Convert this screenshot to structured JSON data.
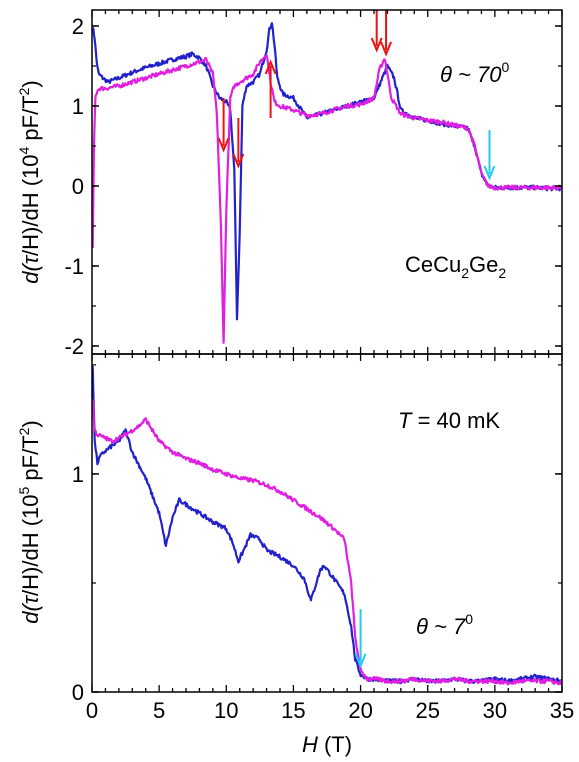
{
  "chart_data": [
    {
      "type": "line",
      "panel": "top",
      "ylabel": {
        "pre": "d(",
        "tau": "τ",
        "mid": "/H)/dH (10",
        "exp": "4",
        "post": " pF/T",
        "post_exp": "2",
        "end": ")"
      },
      "xlim": [
        0,
        35
      ],
      "ylim": [
        -2.1,
        2.2
      ],
      "yticks": [
        "-2",
        "-1",
        "0",
        "1",
        "2"
      ],
      "ytick_values": [
        -2,
        -1,
        0,
        1,
        2
      ],
      "annotations": {
        "theta": "θ ~ 70",
        "theta_exp": "0",
        "compound_a": "CeCu",
        "compound_sub1": "2",
        "compound_b": "Ge",
        "compound_sub2": "2"
      },
      "series": [
        {
          "color": "#2222cc",
          "x": [
            0.05,
            0.2,
            0.35,
            0.5,
            0.8,
            1.2,
            2,
            3,
            4,
            5,
            6,
            7,
            7.5,
            8,
            8.5,
            9,
            9.5,
            10,
            10.3,
            10.6,
            10.8,
            11.0,
            11.2,
            11.5,
            12,
            12.5,
            13,
            13.2,
            13.4,
            13.6,
            13.8,
            14.2,
            15,
            16,
            17,
            18,
            19,
            20,
            21,
            21.5,
            22,
            22.5,
            23,
            24,
            25,
            26,
            27,
            28,
            28.5,
            29,
            29.5,
            30,
            31,
            32,
            33,
            34,
            35
          ],
          "y": [
            2.0,
            1.85,
            1.55,
            1.4,
            1.35,
            1.3,
            1.35,
            1.42,
            1.48,
            1.53,
            1.58,
            1.62,
            1.65,
            1.6,
            1.5,
            1.25,
            1.1,
            1.05,
            0.95,
            0.2,
            -1.65,
            -0.6,
            1.0,
            1.25,
            1.3,
            1.4,
            1.7,
            1.95,
            2.05,
            1.75,
            1.35,
            1.15,
            1.1,
            0.85,
            0.9,
            0.95,
            1.0,
            1.05,
            1.1,
            1.3,
            1.5,
            1.35,
            0.95,
            0.85,
            0.82,
            0.78,
            0.75,
            0.72,
            0.5,
            0.15,
            0.0,
            -0.02,
            -0.02,
            -0.02,
            -0.02,
            -0.03,
            -0.03
          ]
        },
        {
          "color": "#e020e0",
          "x": [
            0.05,
            0.15,
            0.25,
            0.4,
            0.6,
            1.0,
            2,
            3,
            4,
            5,
            6,
            7,
            8,
            8.5,
            9,
            9.3,
            9.6,
            9.8,
            10.0,
            10.3,
            10.6,
            11,
            11.5,
            12,
            12.5,
            13,
            13.3,
            13.6,
            14,
            15,
            16,
            17,
            18,
            19,
            20,
            21,
            21.4,
            21.8,
            22.3,
            23,
            24,
            25,
            26,
            27,
            28,
            28.5,
            29,
            29.5,
            30,
            31,
            32,
            33,
            34,
            35
          ],
          "y": [
            -0.8,
            0.5,
            1.1,
            1.2,
            1.22,
            1.22,
            1.25,
            1.3,
            1.35,
            1.4,
            1.45,
            1.5,
            1.55,
            1.58,
            1.4,
            0.9,
            -0.5,
            -1.95,
            -0.3,
            1.1,
            1.25,
            1.3,
            1.35,
            1.4,
            1.55,
            1.65,
            1.3,
            1.05,
            1.0,
            0.95,
            0.88,
            0.9,
            0.95,
            1.0,
            1.02,
            1.1,
            1.45,
            1.6,
            1.1,
            0.9,
            0.85,
            0.82,
            0.8,
            0.76,
            0.72,
            0.5,
            0.15,
            0.0,
            -0.02,
            -0.02,
            -0.02,
            -0.02,
            -0.02,
            -0.02
          ]
        }
      ],
      "arrows": [
        {
          "color": "#ee1111",
          "x": 9.8,
          "y_tail": 1.1,
          "y_head": 0.45
        },
        {
          "color": "#ee1111",
          "x": 10.9,
          "y_tail": 0.85,
          "y_head": 0.25
        },
        {
          "color": "#ee1111",
          "x": 13.3,
          "y_tail": 0.85,
          "y_head": 1.55
        },
        {
          "color": "#ee1111",
          "x": 21.2,
          "y_tail": 2.2,
          "y_head": 1.7
        },
        {
          "color": "#ee1111",
          "x": 21.9,
          "y_tail": 2.2,
          "y_head": 1.65
        },
        {
          "color": "#22ccee",
          "x": 29.6,
          "y_tail": 0.7,
          "y_head": 0.1
        }
      ]
    },
    {
      "type": "line",
      "panel": "bottom",
      "ylabel": {
        "pre": "d(",
        "tau": "τ",
        "mid": "/H)/dH (10",
        "exp": "5",
        "post": " pF/T",
        "post_exp": "2",
        "end": ")"
      },
      "xlabel": {
        "var": "H",
        "unit": " (T)"
      },
      "xlim": [
        0,
        35
      ],
      "ylim": [
        0,
        1.55
      ],
      "xticks": [
        "0",
        "5",
        "10",
        "15",
        "20",
        "25",
        "30",
        "35"
      ],
      "xtick_values": [
        0,
        5,
        10,
        15,
        20,
        25,
        30,
        35
      ],
      "yticks": [
        "0",
        "1"
      ],
      "ytick_values": [
        0,
        1
      ],
      "annotations": {
        "temp_var": "T",
        "temp_val": " = 40 mK",
        "theta": "θ ~ 7",
        "theta_exp": "0"
      },
      "series": [
        {
          "color": "#2222cc",
          "x": [
            0.05,
            0.2,
            0.4,
            0.6,
            0.9,
            1.3,
            2,
            2.5,
            3,
            4,
            5,
            5.5,
            6,
            6.5,
            7,
            8,
            9,
            10,
            10.5,
            10.9,
            11.3,
            11.8,
            12.5,
            13,
            14,
            15,
            15.8,
            16.3,
            16.6,
            17,
            17.3,
            18,
            18.8,
            19.3,
            19.6,
            20,
            20.5,
            21,
            22,
            23,
            24,
            25,
            26,
            27,
            28,
            29,
            30,
            31,
            32,
            33,
            34,
            35
          ],
          "y": [
            1.5,
            1.15,
            1.05,
            1.08,
            1.1,
            1.12,
            1.15,
            1.2,
            1.1,
            0.98,
            0.82,
            0.67,
            0.8,
            0.88,
            0.86,
            0.82,
            0.78,
            0.75,
            0.68,
            0.6,
            0.65,
            0.72,
            0.7,
            0.65,
            0.62,
            0.58,
            0.52,
            0.42,
            0.48,
            0.56,
            0.58,
            0.52,
            0.45,
            0.3,
            0.15,
            0.08,
            0.06,
            0.06,
            0.05,
            0.05,
            0.06,
            0.05,
            0.05,
            0.06,
            0.05,
            0.05,
            0.06,
            0.05,
            0.06,
            0.07,
            0.06,
            0.05
          ]
        },
        {
          "color": "#e020e0",
          "x": [
            0.05,
            0.2,
            0.4,
            0.8,
            1.5,
            2.5,
            3.5,
            4,
            5,
            6,
            7,
            8,
            9,
            10,
            11,
            12,
            13,
            14,
            15,
            16,
            17,
            18,
            18.8,
            19.3,
            19.6,
            20,
            20.5,
            21,
            22,
            23,
            24,
            25,
            26,
            27,
            28,
            29,
            30,
            31,
            32,
            33,
            34,
            35
          ],
          "y": [
            1.35,
            1.2,
            1.18,
            1.17,
            1.15,
            1.18,
            1.22,
            1.25,
            1.15,
            1.1,
            1.07,
            1.05,
            1.02,
            1.0,
            0.98,
            0.97,
            0.95,
            0.92,
            0.88,
            0.84,
            0.8,
            0.75,
            0.7,
            0.5,
            0.25,
            0.1,
            0.06,
            0.06,
            0.05,
            0.05,
            0.06,
            0.05,
            0.05,
            0.06,
            0.05,
            0.05,
            0.05,
            0.04,
            0.05,
            0.05,
            0.05,
            0.04
          ]
        }
      ],
      "arrows": [
        {
          "color": "#22ccee",
          "x": 20.0,
          "y_tail": 0.38,
          "y_head": 0.12
        }
      ]
    }
  ]
}
